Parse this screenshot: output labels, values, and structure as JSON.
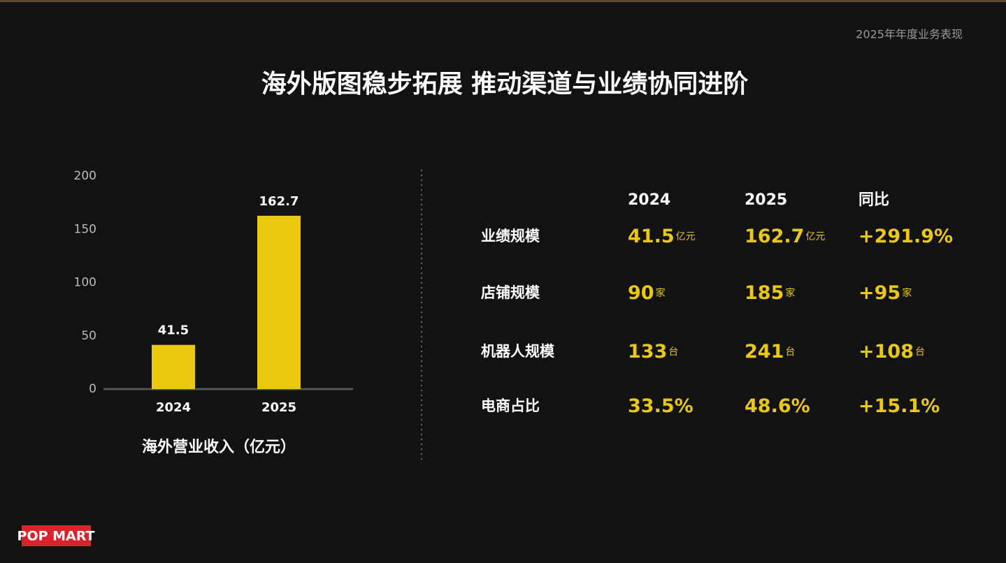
{
  "header": {
    "tag": "2025年年度业务表现",
    "title": "海外版图稳步拓展 推动渠道与业绩协同进阶"
  },
  "chart_data": {
    "type": "bar",
    "categories": [
      "2024",
      "2025"
    ],
    "values": [
      41.5,
      162.7
    ],
    "color": "#e9c80e",
    "ylim": [
      0,
      200
    ],
    "yticks": [
      0,
      50,
      100,
      150,
      200
    ],
    "xlabel": "海外营业收入（亿元）"
  },
  "table": {
    "columns": [
      "2024",
      "2025",
      "同比"
    ],
    "rows": [
      {
        "label": "业绩规模",
        "cells": [
          {
            "text": "41.5",
            "unit": "亿元"
          },
          {
            "text": "162.7",
            "unit": "亿元"
          },
          {
            "text": "+291.9%"
          }
        ]
      },
      {
        "label": "店铺规模",
        "cells": [
          {
            "text": "90",
            "unit": "家"
          },
          {
            "text": "185",
            "unit": "家"
          },
          {
            "text": "+95",
            "unit": "家"
          }
        ]
      },
      {
        "label": "机器人规模",
        "cells": [
          {
            "text": "133",
            "unit": "台"
          },
          {
            "text": "241",
            "unit": "台"
          },
          {
            "text": "+108",
            "unit": "台"
          }
        ]
      },
      {
        "label": "电商占比",
        "cells": [
          {
            "text": "33.5%"
          },
          {
            "text": "48.6%"
          },
          {
            "text": "+15.1%"
          }
        ]
      }
    ]
  },
  "logo": "POP MART"
}
